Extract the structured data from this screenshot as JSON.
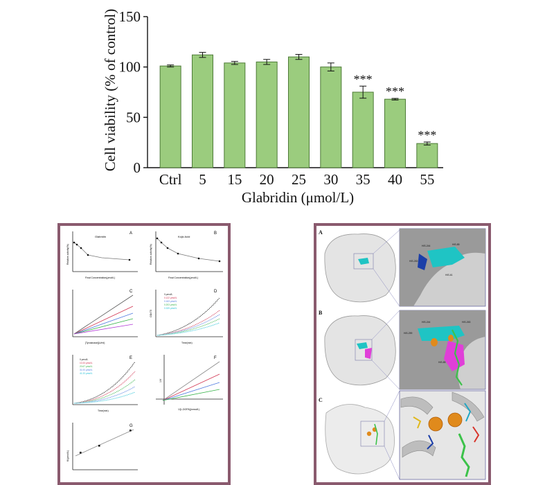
{
  "chart_data": {
    "type": "bar",
    "ylabel": "Cell viability (% of control)",
    "xlabel": "Glabridin (μmol/L)",
    "categories": [
      "Ctrl",
      "5",
      "15",
      "20",
      "25",
      "30",
      "35",
      "40",
      "55"
    ],
    "values": [
      101,
      112,
      104,
      105,
      110,
      100,
      75,
      68,
      24
    ],
    "errors": [
      1,
      2.5,
      1.5,
      2.5,
      2.5,
      4,
      6,
      0.8,
      1.5
    ],
    "annotations": [
      "",
      "",
      "",
      "",
      "",
      "",
      "***",
      "***",
      "***"
    ],
    "ylim": [
      0,
      150
    ],
    "yticks": [
      0,
      50,
      100,
      150
    ],
    "bar_color": "#9bcc7e",
    "bar_edge": "#4d7a37",
    "grid": false
  },
  "colors": {
    "frame": "#8a5a6e",
    "series": [
      "#111111",
      "#d1324f",
      "#4f7ae0",
      "#38b34a",
      "#b23ad6",
      "#28c2d6"
    ]
  },
  "left_panel": {
    "labels": [
      "A",
      "B",
      "C",
      "D",
      "E",
      "F",
      "G"
    ],
    "legend_A": "Glabridin",
    "legend_B": "Kojic Acid",
    "ylabel_A": "Relative activity(%)",
    "ylabel_B": "Relative activity(%)",
    "xlabel_A": "Final Concentration(μmol/L)",
    "xlabel_B": "Final Concentration(μmol/L)",
    "xlabel_C": "[Tyrosinase](U/ml)",
    "ylabel_D": "OD475",
    "xlabel_D": "Time(min)",
    "legend_D": [
      "0 μmol/L",
      "0.122 μmol/L",
      "0.163 μmol/L",
      "0.203 μmol/L",
      "0.325 μmol/L"
    ],
    "legend_E": [
      "0 μmol/L",
      "10.33 μmol/L",
      "20.67 μmol/L",
      "31.00 μmol/L",
      "41.33 μmol/L"
    ],
    "xlabel_E": "Time(min)",
    "xlabel_F": "1/[L-DOPA](mmol/L)",
    "ylabel_F": "1/V",
    "ylabel_G": "Ki(μmol/L)"
  },
  "right_panel": {
    "labels": [
      "A",
      "B",
      "C"
    ],
    "residues_A": [
      "HIS-244",
      "HIS-61",
      "HIS-85",
      "HIS-263"
    ],
    "residues_B": [
      "HIS-259",
      "HIS-263",
      "HIS-244",
      "HIS-85"
    ]
  }
}
